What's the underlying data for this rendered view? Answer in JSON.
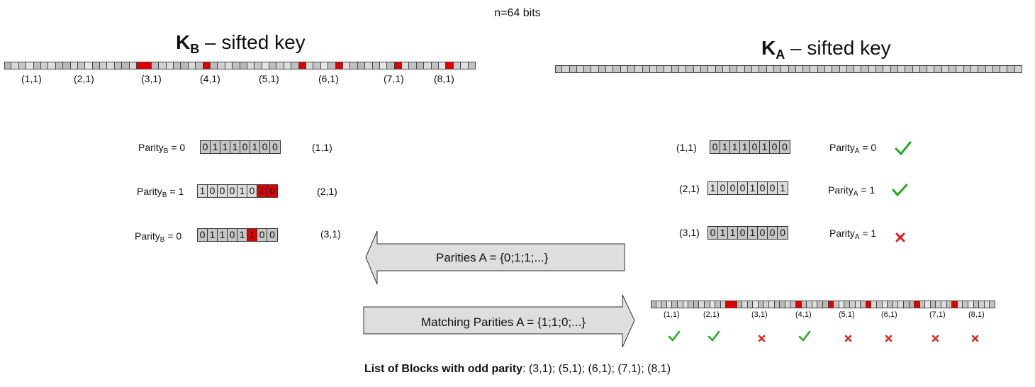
{
  "header": {
    "bits_note": "n=64 bits"
  },
  "key_b": {
    "title_letter": "K",
    "title_sub": "B",
    "title_rest": " – sifted key",
    "block_labels": [
      "(1,1)",
      "(2,1)",
      "(3,1)",
      "(4,1)",
      "(5,1)",
      "(6,1)",
      "(7,1)",
      "(8,1)"
    ]
  },
  "key_a": {
    "title_letter": "K",
    "title_sub": "A",
    "title_rest": " – sifted key"
  },
  "bob_blocks": [
    {
      "id": "(1,1)",
      "parity_prefix": "Parity",
      "parity_sub": "B",
      "parity_value": " = 0",
      "bits": [
        "0",
        "1",
        "1",
        "1",
        "0",
        "1",
        "0",
        "0"
      ]
    },
    {
      "id": "(2,1)",
      "parity_prefix": "Parity",
      "parity_sub": "B",
      "parity_value": " = 1",
      "bits": [
        "1",
        "0",
        "0",
        "0",
        "1",
        "0",
        "1",
        "0"
      ]
    },
    {
      "id": "(3,1)",
      "parity_prefix": "Parity",
      "parity_sub": "B",
      "parity_value": " = 0",
      "bits": [
        "0",
        "1",
        "1",
        "0",
        "1",
        "1",
        "0",
        "0"
      ]
    }
  ],
  "alice_blocks": [
    {
      "id": "(1,1)",
      "parity_prefix": "Parity",
      "parity_sub": "A",
      "parity_value": " = 0",
      "bits": [
        "0",
        "1",
        "1",
        "1",
        "0",
        "1",
        "0",
        "0"
      ],
      "result": "match"
    },
    {
      "id": "(2,1)",
      "parity_prefix": "Parity",
      "parity_sub": "A",
      "parity_value": " = 1",
      "bits": [
        "1",
        "0",
        "0",
        "0",
        "1",
        "0",
        "0",
        "1"
      ],
      "result": "match"
    },
    {
      "id": "(3,1)",
      "parity_prefix": "Parity",
      "parity_sub": "A",
      "parity_value": " = 1",
      "bits": [
        "0",
        "1",
        "1",
        "0",
        "1",
        "0",
        "0",
        "0"
      ],
      "result": "mismatch"
    }
  ],
  "arrows": {
    "parities_a": "Parities A = {0;1;1;...}",
    "matching_parities": "Matching Parities A = {1;1;0;...}"
  },
  "small_key": {
    "block_labels": [
      "(1,1)",
      "(2,1)",
      "(3,1)",
      "(4,1)",
      "(5,1)",
      "(6,1)",
      "(7,1)",
      "(8,1)"
    ],
    "results": [
      "match",
      "match",
      "mismatch",
      "match",
      "mismatch",
      "mismatch",
      "mismatch",
      "mismatch"
    ]
  },
  "bottom": {
    "bold_part": "List of Blocks with odd parity",
    "rest": ": (3,1); (5,1); (6,1); (7,1); (8,1)"
  },
  "colors": {
    "error_red": "#e00000",
    "check_green": "#22aa22",
    "cross_red": "#e02020",
    "cell_grey": "#c6c6c6",
    "arrow_fill": "#dedede"
  }
}
